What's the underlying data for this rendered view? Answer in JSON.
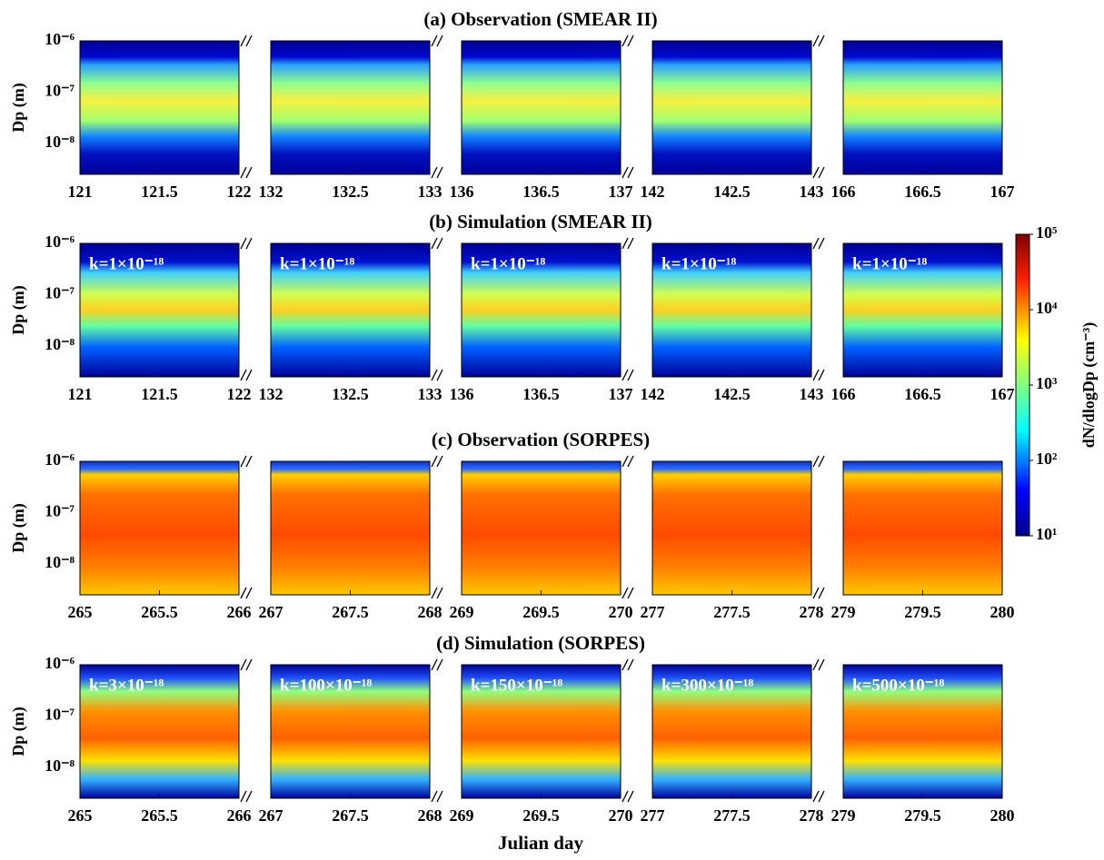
{
  "chart_data": [
    {
      "type": "heatmap",
      "title": "(a) Observation (SMEAR II)",
      "ylabel": "Dp (m)",
      "yscale": "log",
      "ylim": [
        2.5e-09,
        1e-06
      ],
      "yticks": [
        {
          "value": 1e-06,
          "label": "10⁻⁶"
        },
        {
          "value": 1e-07,
          "label": "10⁻⁷"
        },
        {
          "value": 1e-08,
          "label": "10⁻⁸"
        }
      ],
      "segments": [
        {
          "xlim": [
            121,
            122
          ],
          "xticks": [
            121,
            121.5,
            122
          ]
        },
        {
          "xlim": [
            132,
            133
          ],
          "xticks": [
            132,
            132.5,
            133
          ]
        },
        {
          "xlim": [
            136,
            137
          ],
          "xticks": [
            136,
            136.5,
            137
          ]
        },
        {
          "xlim": [
            142,
            143
          ],
          "xticks": [
            142,
            142.5,
            143
          ]
        },
        {
          "xlim": [
            166,
            167
          ],
          "xticks": [
            166,
            166.5,
            167
          ]
        }
      ]
    },
    {
      "type": "heatmap",
      "title": "(b) Simulation (SMEAR II)",
      "ylabel": "Dp (m)",
      "yscale": "log",
      "ylim": [
        2.5e-09,
        1e-06
      ],
      "yticks": [
        {
          "value": 1e-06,
          "label": "10⁻⁶"
        },
        {
          "value": 1e-07,
          "label": "10⁻⁷"
        },
        {
          "value": 1e-08,
          "label": "10⁻⁸"
        }
      ],
      "segments": [
        {
          "xlim": [
            121,
            122
          ],
          "xticks": [
            121,
            121.5,
            122
          ],
          "annotation": "k=1×10⁻¹⁸"
        },
        {
          "xlim": [
            132,
            133
          ],
          "xticks": [
            132,
            132.5,
            133
          ],
          "annotation": "k=1×10⁻¹⁸"
        },
        {
          "xlim": [
            136,
            137
          ],
          "xticks": [
            136,
            136.5,
            137
          ],
          "annotation": "k=1×10⁻¹⁸"
        },
        {
          "xlim": [
            142,
            143
          ],
          "xticks": [
            142,
            142.5,
            143
          ],
          "annotation": "k=1×10⁻¹⁸"
        },
        {
          "xlim": [
            166,
            167
          ],
          "xticks": [
            166,
            166.5,
            167
          ],
          "annotation": "k=1×10⁻¹⁸"
        }
      ],
      "colorbar": {
        "label": "dN/dlogDp (cm⁻³)",
        "scale": "log",
        "lim": [
          10,
          100000
        ],
        "ticks": [
          {
            "value": 10,
            "label": "10¹"
          },
          {
            "value": 100,
            "label": "10²"
          },
          {
            "value": 1000,
            "label": "10³"
          },
          {
            "value": 10000,
            "label": "10⁴"
          },
          {
            "value": 100000,
            "label": "10⁵"
          }
        ]
      }
    },
    {
      "type": "heatmap",
      "title": "(c) Observation (SORPES)",
      "ylabel": "Dp (m)",
      "yscale": "log",
      "ylim": [
        2.5e-09,
        1e-06
      ],
      "yticks": [
        {
          "value": 1e-06,
          "label": "10⁻⁶"
        },
        {
          "value": 1e-07,
          "label": "10⁻⁷"
        },
        {
          "value": 1e-08,
          "label": "10⁻⁸"
        }
      ],
      "segments": [
        {
          "xlim": [
            265,
            266
          ],
          "xticks": [
            265,
            265.5,
            266
          ]
        },
        {
          "xlim": [
            267,
            268
          ],
          "xticks": [
            267,
            267.5,
            268
          ]
        },
        {
          "xlim": [
            269,
            270
          ],
          "xticks": [
            269,
            269.5,
            270
          ]
        },
        {
          "xlim": [
            277,
            278
          ],
          "xticks": [
            277,
            277.5,
            278
          ]
        },
        {
          "xlim": [
            279,
            280
          ],
          "xticks": [
            279,
            279.5,
            280
          ]
        }
      ]
    },
    {
      "type": "heatmap",
      "title": "(d) Simulation (SORPES)",
      "ylabel": "Dp (m)",
      "xlabel": "Julian day",
      "yscale": "log",
      "ylim": [
        2.5e-09,
        1e-06
      ],
      "yticks": [
        {
          "value": 1e-06,
          "label": "10⁻⁶"
        },
        {
          "value": 1e-07,
          "label": "10⁻⁷"
        },
        {
          "value": 1e-08,
          "label": "10⁻⁸"
        }
      ],
      "segments": [
        {
          "xlim": [
            265,
            266
          ],
          "xticks": [
            265,
            265.5,
            266
          ],
          "annotation": "k=3×10⁻¹⁸"
        },
        {
          "xlim": [
            267,
            268
          ],
          "xticks": [
            267,
            267.5,
            268
          ],
          "annotation": "k=100×10⁻¹⁸"
        },
        {
          "xlim": [
            269,
            270
          ],
          "xticks": [
            269,
            269.5,
            270
          ],
          "annotation": "k=150×10⁻¹⁸"
        },
        {
          "xlim": [
            277,
            278
          ],
          "xticks": [
            277,
            277.5,
            278
          ],
          "annotation": "k=300×10⁻¹⁸"
        },
        {
          "xlim": [
            279,
            280
          ],
          "xticks": [
            279,
            279.5,
            280
          ],
          "annotation": "k=500×10⁻¹⁸"
        }
      ]
    }
  ]
}
